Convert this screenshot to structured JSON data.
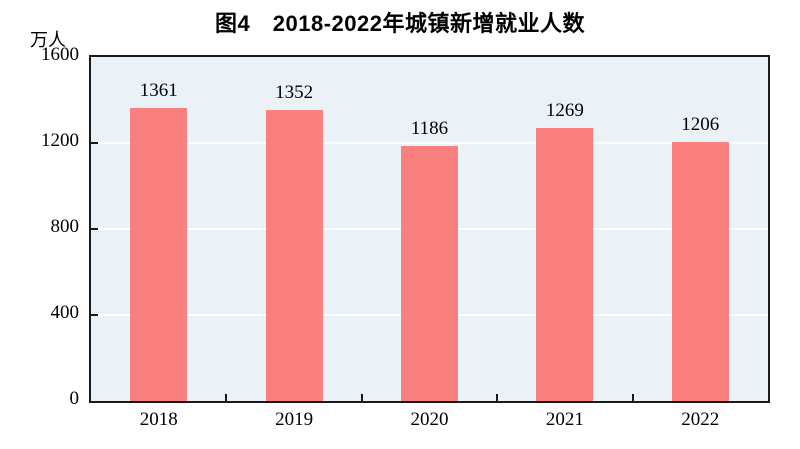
{
  "chart_data": {
    "type": "bar",
    "title": "图4　2018-2022年城镇新增就业人数",
    "unit_label": "万人",
    "categories": [
      "2018",
      "2019",
      "2020",
      "2021",
      "2022"
    ],
    "values": [
      1361,
      1352,
      1186,
      1269,
      1206
    ],
    "value_labels": [
      "1361",
      "1352",
      "1186",
      "1269",
      "1206"
    ],
    "xlabel": "",
    "ylabel": "万人",
    "ylim": [
      0,
      1600
    ],
    "yticks": [
      0,
      400,
      800,
      1200,
      1600
    ],
    "ytick_labels": [
      "0",
      "400",
      "800",
      "1200",
      "1600"
    ],
    "grid": true,
    "legend": "none",
    "bar_color": "#FA7F7F",
    "plot_bg": "#EBF2F7",
    "grid_color": "#FFFFFF",
    "axis_color": "#1A1A1A",
    "text_color": "#000000"
  }
}
